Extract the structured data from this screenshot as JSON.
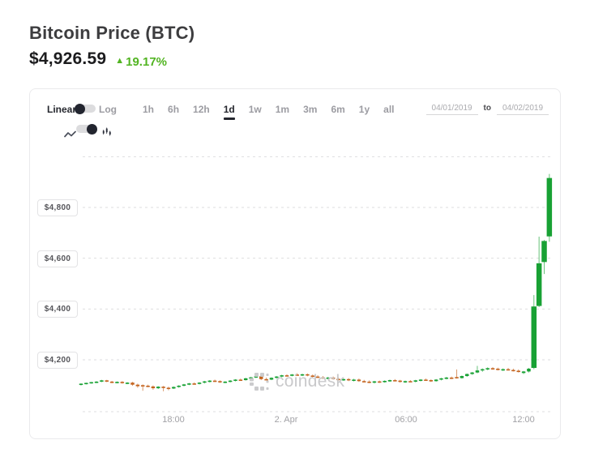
{
  "header": {
    "title": "Bitcoin Price (BTC)",
    "price": "$4,926.59",
    "change_arrow": "▲",
    "change_pct": "19.17%",
    "change_color": "#52b422"
  },
  "panel": {
    "scale_toggle": {
      "left_label": "Linear",
      "right_label": "Log",
      "selected": "Linear"
    },
    "type_toggle": {
      "icons": [
        "line-chart",
        "candlestick"
      ],
      "selected": "candlestick"
    },
    "ranges": [
      "1h",
      "6h",
      "12h",
      "1d",
      "1w",
      "1m",
      "3m",
      "6m",
      "1y",
      "all"
    ],
    "active_range": "1d",
    "date_from": "04/01/2019",
    "to_label": "to",
    "date_to": "04/02/2019"
  },
  "watermark": {
    "brand": "coindesk"
  },
  "chart_data": {
    "type": "candlestick",
    "title": "Bitcoin Price (BTC) 1d candlestick chart",
    "ylim": [
      3996,
      5110
    ],
    "grid_values": [
      4200,
      4400,
      4600,
      4800,
      5000
    ],
    "y_ticks": [
      {
        "value": 4800,
        "label": "$4,800"
      },
      {
        "value": 4600,
        "label": "$4,600"
      },
      {
        "value": 4400,
        "label": "$4,400"
      },
      {
        "value": 4200,
        "label": "$4,200"
      }
    ],
    "x_ticks": [
      "18:00",
      "2. Apr",
      "06:00",
      "12:00"
    ],
    "grid_style": "dashed",
    "colors": {
      "up": "#18a134",
      "down": "#c4641f"
    },
    "candles": [
      [
        4103,
        4107,
        4099,
        4106
      ],
      [
        4106,
        4110,
        4103,
        4109
      ],
      [
        4109,
        4113,
        4106,
        4112
      ],
      [
        4110,
        4116,
        4108,
        4114
      ],
      [
        4114,
        4121,
        4112,
        4119
      ],
      [
        4119,
        4121,
        4112,
        4114
      ],
      [
        4114,
        4117,
        4108,
        4110
      ],
      [
        4110,
        4115,
        4107,
        4113
      ],
      [
        4113,
        4116,
        4106,
        4108
      ],
      [
        4108,
        4112,
        4104,
        4110
      ],
      [
        4110,
        4113,
        4098,
        4102
      ],
      [
        4102,
        4106,
        4090,
        4096
      ],
      [
        4100,
        4103,
        4078,
        4098
      ],
      [
        4098,
        4102,
        4092,
        4095
      ],
      [
        4095,
        4099,
        4082,
        4088
      ],
      [
        4088,
        4096,
        4085,
        4094
      ],
      [
        4094,
        4097,
        4076,
        4090
      ],
      [
        4090,
        4094,
        4080,
        4087
      ],
      [
        4087,
        4095,
        4085,
        4093
      ],
      [
        4093,
        4100,
        4090,
        4098
      ],
      [
        4098,
        4105,
        4095,
        4103
      ],
      [
        4103,
        4109,
        4100,
        4107
      ],
      [
        4107,
        4111,
        4102,
        4105
      ],
      [
        4105,
        4112,
        4103,
        4110
      ],
      [
        4110,
        4117,
        4107,
        4115
      ],
      [
        4115,
        4120,
        4111,
        4118
      ],
      [
        4118,
        4122,
        4113,
        4116
      ],
      [
        4116,
        4119,
        4109,
        4112
      ],
      [
        4112,
        4116,
        4108,
        4114
      ],
      [
        4114,
        4120,
        4111,
        4118
      ],
      [
        4118,
        4124,
        4115,
        4122
      ],
      [
        4122,
        4126,
        4118,
        4120
      ],
      [
        4120,
        4129,
        4118,
        4127
      ],
      [
        4127,
        4133,
        4124,
        4131
      ],
      [
        4131,
        4137,
        4128,
        4135
      ],
      [
        4135,
        4139,
        4120,
        4124
      ],
      [
        4124,
        4130,
        4119,
        4122
      ],
      [
        4122,
        4131,
        4120,
        4129
      ],
      [
        4129,
        4136,
        4126,
        4134
      ],
      [
        4134,
        4141,
        4131,
        4139
      ],
      [
        4139,
        4143,
        4134,
        4137
      ],
      [
        4137,
        4144,
        4135,
        4142
      ],
      [
        4142,
        4147,
        4138,
        4140
      ],
      [
        4140,
        4145,
        4136,
        4143
      ],
      [
        4143,
        4146,
        4135,
        4138
      ],
      [
        4138,
        4142,
        4131,
        4134
      ],
      [
        4134,
        4139,
        4128,
        4131
      ],
      [
        4131,
        4136,
        4125,
        4128
      ],
      [
        4128,
        4133,
        4123,
        4130
      ],
      [
        4130,
        4134,
        4122,
        4125
      ],
      [
        4125,
        4130,
        4118,
        4121
      ],
      [
        4121,
        4127,
        4117,
        4124
      ],
      [
        4124,
        4128,
        4116,
        4119
      ],
      [
        4119,
        4125,
        4115,
        4122
      ],
      [
        4122,
        4126,
        4113,
        4116
      ],
      [
        4116,
        4121,
        4111,
        4114
      ],
      [
        4114,
        4119,
        4108,
        4111
      ],
      [
        4111,
        4117,
        4107,
        4115
      ],
      [
        4115,
        4118,
        4109,
        4112
      ],
      [
        4112,
        4119,
        4110,
        4117
      ],
      [
        4117,
        4122,
        4113,
        4120
      ],
      [
        4120,
        4124,
        4115,
        4118
      ],
      [
        4118,
        4121,
        4110,
        4113
      ],
      [
        4113,
        4118,
        4109,
        4116
      ],
      [
        4116,
        4120,
        4112,
        4114
      ],
      [
        4114,
        4121,
        4111,
        4119
      ],
      [
        4119,
        4124,
        4115,
        4122
      ],
      [
        4122,
        4126,
        4117,
        4120
      ],
      [
        4120,
        4123,
        4113,
        4116
      ],
      [
        4116,
        4124,
        4114,
        4122
      ],
      [
        4122,
        4129,
        4119,
        4127
      ],
      [
        4127,
        4133,
        4123,
        4130
      ],
      [
        4130,
        4134,
        4124,
        4126
      ],
      [
        4132,
        4162,
        4126,
        4128
      ],
      [
        4128,
        4138,
        4126,
        4136
      ],
      [
        4136,
        4146,
        4133,
        4144
      ],
      [
        4144,
        4152,
        4141,
        4150
      ],
      [
        4150,
        4176,
        4147,
        4158
      ],
      [
        4158,
        4166,
        4153,
        4163
      ],
      [
        4163,
        4170,
        4159,
        4167
      ],
      [
        4167,
        4171,
        4161,
        4165
      ],
      [
        4165,
        4169,
        4158,
        4161
      ],
      [
        4161,
        4166,
        4156,
        4163
      ],
      [
        4163,
        4168,
        4158,
        4160
      ],
      [
        4160,
        4165,
        4154,
        4157
      ],
      [
        4157,
        4162,
        4150,
        4153
      ],
      [
        4148,
        4156,
        4144,
        4154
      ],
      [
        4154,
        4168,
        4150,
        4165
      ],
      [
        4168,
        4455,
        4163,
        4410
      ],
      [
        4412,
        4685,
        4408,
        4580
      ],
      [
        4585,
        4672,
        4538,
        4668
      ],
      [
        4686,
        4932,
        4665,
        4916
      ]
    ]
  }
}
